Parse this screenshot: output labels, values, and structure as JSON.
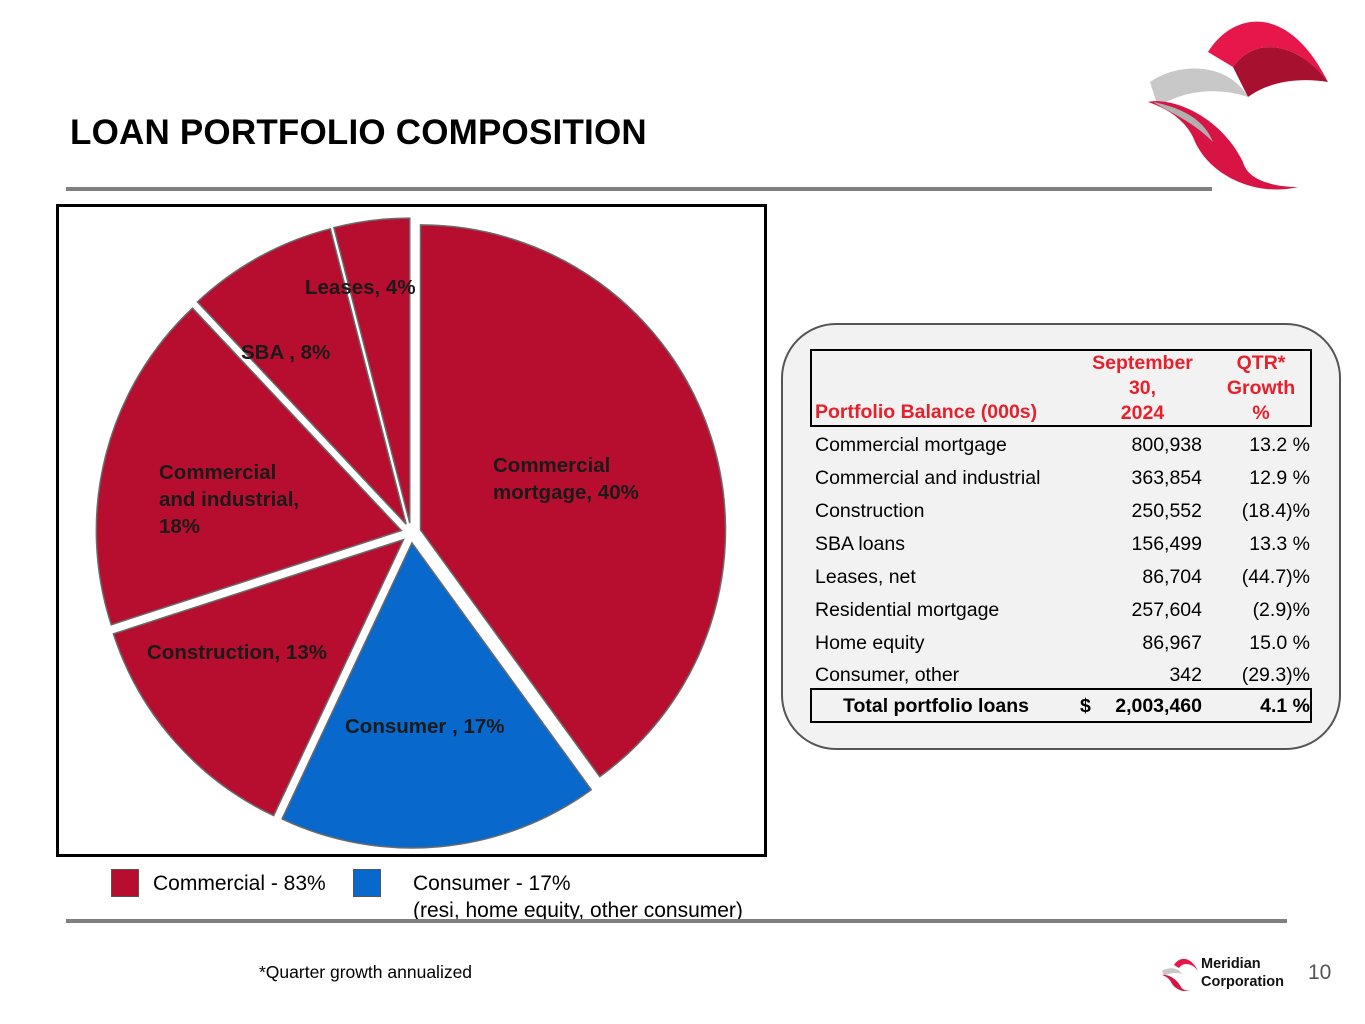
{
  "title": "LOAN PORTFOLIO COMPOSITION",
  "colors": {
    "commercial": "#b70e2f",
    "consumer": "#0868cc",
    "header_red": "#e8202b",
    "rule_gray": "#7f7f7f"
  },
  "icons": {
    "logo": "meridian-ribbon-logo-icon"
  },
  "chart_data": {
    "type": "pie",
    "title": "",
    "slices": [
      {
        "label": "Commercial\nmortgage, 40%",
        "value": 40,
        "group": "commercial"
      },
      {
        "label": "Consumer , 17%",
        "value": 17,
        "group": "consumer"
      },
      {
        "label": "Construction, 13%",
        "value": 13,
        "group": "commercial"
      },
      {
        "label": "Commercial\nand industrial,\n18%",
        "value": 18,
        "group": "commercial"
      },
      {
        "label": "SBA , 8%",
        "value": 8,
        "group": "commercial"
      },
      {
        "label": "Leases, 4%",
        "value": 4,
        "group": "commercial"
      }
    ],
    "legend": [
      {
        "label": "Commercial - 83%",
        "group": "commercial"
      },
      {
        "label": "Consumer - 17%",
        "sublabel": "(resi, home equity, other consumer)",
        "group": "consumer"
      }
    ],
    "legend_position": "bottom"
  },
  "table": {
    "header": {
      "label": "Portfolio Balance (000s)",
      "date": "September\n30,\n2024",
      "growth": "QTR*\nGrowth\n%"
    },
    "rows": [
      {
        "name": "Commercial mortgage",
        "balance": "800,938",
        "growth": "13.2 %"
      },
      {
        "name": "Commercial and industrial",
        "balance": "363,854",
        "growth": "12.9 %"
      },
      {
        "name": "Construction",
        "balance": "250,552",
        "growth": "(18.4)%"
      },
      {
        "name": "SBA loans",
        "balance": "156,499",
        "growth": "13.3 %"
      },
      {
        "name": "Leases, net",
        "balance": "86,704",
        "growth": "(44.7)%"
      },
      {
        "name": "Residential mortgage",
        "balance": "257,604",
        "growth": "(2.9)%"
      },
      {
        "name": "Home equity",
        "balance": "86,967",
        "growth": "15.0 %"
      },
      {
        "name": "Consumer, other",
        "balance": "342",
        "growth": "(29.3)%"
      }
    ],
    "total": {
      "name": "Total portfolio loans",
      "currency": "$",
      "balance": "2,003,460",
      "growth": "4.1 %"
    }
  },
  "footnote": "*Quarter growth annualized",
  "brand": {
    "line1": "Meridian",
    "line2": "Corporation"
  },
  "page_number": "10"
}
